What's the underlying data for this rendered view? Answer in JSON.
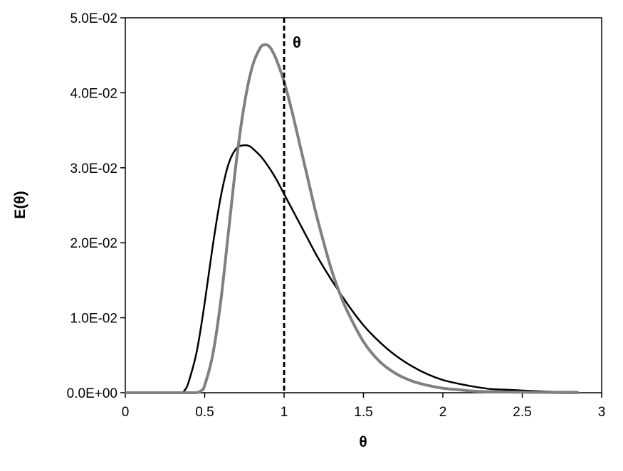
{
  "chart_data": {
    "type": "line",
    "title": "",
    "xlabel": "θ",
    "ylabel": "E(θ)",
    "xlim": [
      0,
      3
    ],
    "ylim": [
      0,
      0.05
    ],
    "x_ticks": [
      0,
      0.5,
      1,
      1.5,
      2,
      2.5,
      3
    ],
    "x_tick_labels": [
      "0",
      "0.5",
      "1",
      "1.5",
      "2",
      "2.5",
      "3"
    ],
    "y_ticks": [
      0,
      0.01,
      0.02,
      0.03,
      0.04,
      0.05
    ],
    "y_tick_labels": [
      "0.0E+00",
      "1.0E-02",
      "2.0E-02",
      "3.0E-02",
      "4.0E-02",
      "5.0E-02"
    ],
    "grid": false,
    "legend": "none",
    "series": [
      {
        "color": "#000000",
        "x": [
          0.36,
          0.38,
          0.4,
          0.45,
          0.5,
          0.55,
          0.6,
          0.65,
          0.7,
          0.75,
          0.78,
          0.8,
          0.85,
          0.9,
          0.95,
          1.0,
          1.05,
          1.1,
          1.15,
          1.2,
          1.25,
          1.3,
          1.4,
          1.5,
          1.6,
          1.7,
          1.8,
          1.9,
          2.0,
          2.1,
          2.2,
          2.3,
          2.4,
          2.5,
          2.6,
          2.7,
          2.85
        ],
        "y": [
          0.0,
          0.0005,
          0.0015,
          0.0055,
          0.012,
          0.0195,
          0.026,
          0.0305,
          0.0326,
          0.033,
          0.0329,
          0.0326,
          0.0316,
          0.0302,
          0.0285,
          0.0265,
          0.0245,
          0.0225,
          0.0205,
          0.0185,
          0.0167,
          0.015,
          0.0118,
          0.009,
          0.0068,
          0.005,
          0.0036,
          0.0025,
          0.0017,
          0.0012,
          0.0008,
          0.0005,
          0.0004,
          0.0003,
          0.0002,
          0.00012,
          0.0001
        ]
      },
      {
        "color": "#808080",
        "x": [
          0.45,
          0.48,
          0.5,
          0.55,
          0.6,
          0.65,
          0.7,
          0.75,
          0.8,
          0.85,
          0.88,
          0.9,
          0.92,
          0.95,
          1.0,
          1.05,
          1.1,
          1.15,
          1.2,
          1.25,
          1.3,
          1.35,
          1.4,
          1.5,
          1.6,
          1.7,
          1.8,
          1.9,
          2.0,
          2.1,
          2.2,
          2.4,
          2.6,
          2.85
        ],
        "y": [
          0.0,
          0.0003,
          0.001,
          0.005,
          0.012,
          0.0215,
          0.031,
          0.0385,
          0.0435,
          0.046,
          0.0464,
          0.0463,
          0.0458,
          0.0445,
          0.0415,
          0.0375,
          0.033,
          0.0285,
          0.024,
          0.02,
          0.0163,
          0.0133,
          0.0108,
          0.0068,
          0.0042,
          0.0026,
          0.0016,
          0.001,
          0.0006,
          0.0004,
          0.0002,
          0.0001,
          5e-05,
          0.0
        ]
      }
    ],
    "annotations": [
      {
        "text": "θ",
        "x": 1.0,
        "style": "vertical-dashed-line"
      }
    ]
  }
}
